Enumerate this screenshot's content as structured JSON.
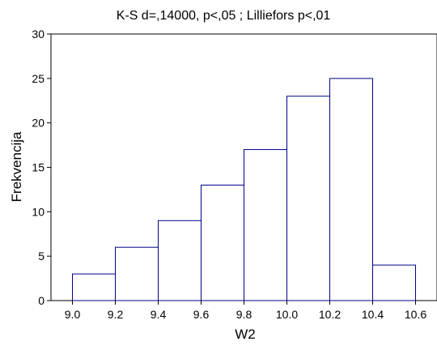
{
  "chart_data": {
    "type": "bar",
    "title": "K-S d=,14000, p<,05 ; Lilliefors p<,01",
    "xlabel": "W2",
    "ylabel": "Frekvencija",
    "bin_edges": [
      9.0,
      9.2,
      9.4,
      9.6,
      9.8,
      10.0,
      10.2,
      10.4,
      10.6
    ],
    "values": [
      3,
      6,
      9,
      13,
      17,
      23,
      25,
      4
    ],
    "x_tick_labels": [
      "9.0",
      "9.2",
      "9.4",
      "9.6",
      "9.8",
      "10.0",
      "10.2",
      "10.4",
      "10.6"
    ],
    "y_ticks": [
      0,
      5,
      10,
      15,
      20,
      25,
      30
    ],
    "xlim": [
      8.9,
      10.7
    ],
    "ylim": [
      0,
      30
    ],
    "grid": false,
    "colors": {
      "bar_edge": "#00008b",
      "bar_fill": "#ffffff",
      "axis": "#000000"
    }
  }
}
